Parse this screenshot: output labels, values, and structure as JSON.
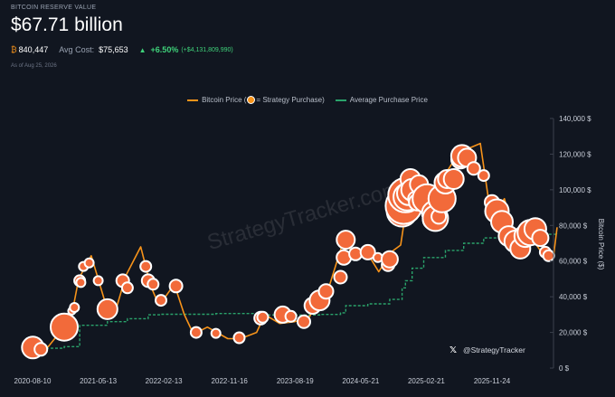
{
  "header": {
    "label": "BITCOIN RESERVE VALUE",
    "value": "$67.71 billion",
    "btc_symbol": "₿",
    "btc_amount": "840,447",
    "avg_cost_label": "Avg Cost:",
    "avg_cost_value": "$75,653",
    "change_pct": "+6.50%",
    "change_abs": "(+$4,131,809,990)",
    "as_of": "As of Aug 25, 2026"
  },
  "legend": {
    "price_a": "Bitcoin Price (",
    "price_b": " = Strategy Purchase)",
    "avg": "Average Purchase Price"
  },
  "watermark": "StrategyTracker.com",
  "handle": "@StrategyTracker",
  "colors": {
    "price": "#f7931a",
    "avg": "#2aa36b",
    "bubble": "#f26a3a",
    "background": "#111620"
  },
  "chart_data": {
    "type": "line",
    "x_ticks": [
      "2020-08-10",
      "2021-05-13",
      "2022-02-13",
      "2022-11-16",
      "2023-08-19",
      "2024-05-21",
      "2025-02-21",
      "2025-11-24"
    ],
    "y_ticks": [
      "0 $",
      "20,000 $",
      "40,000 $",
      "60,000 $",
      "80,000 $",
      "100,000 $",
      "120,000 $",
      "140,000 $"
    ],
    "ylabel": "Bitcoin Price ($)",
    "ylim": [
      0,
      140000
    ],
    "y_axis_position": "right",
    "grid": false,
    "series": [
      {
        "name": "Bitcoin Price",
        "values_x": [
          "2020-08-10",
          "2020-10-15",
          "2020-12-20",
          "2021-01-25",
          "2021-02-20",
          "2021-04-14",
          "2021-06-22",
          "2021-07-20",
          "2021-09-07",
          "2021-11-08",
          "2021-12-20",
          "2022-01-24",
          "2022-03-29",
          "2022-05-10",
          "2022-06-18",
          "2022-08-15",
          "2022-11-09",
          "2023-01-01",
          "2023-03-10",
          "2023-04-14",
          "2023-06-15",
          "2023-08-17",
          "2023-10-20",
          "2023-12-05",
          "2024-01-10",
          "2024-03-13",
          "2024-04-20",
          "2024-06-20",
          "2024-08-05",
          "2024-09-25",
          "2024-11-05",
          "2024-12-17",
          "2025-01-20",
          "2025-03-10",
          "2025-04-08",
          "2025-05-22",
          "2025-07-14",
          "2025-08-14",
          "2025-10-06",
          "2025-11-21",
          "2026-01-15",
          "2026-03-15",
          "2026-05-15",
          "2026-07-15",
          "2026-08-10",
          "2026-08-25"
        ],
        "values": [
          11500,
          12000,
          23000,
          32000,
          50000,
          63000,
          32000,
          30000,
          52000,
          68000,
          46000,
          35000,
          47000,
          30000,
          19000,
          23000,
          16500,
          16500,
          20000,
          30000,
          25000,
          26000,
          29000,
          43000,
          46000,
          73000,
          63000,
          64000,
          54000,
          65000,
          69000,
          106000,
          108000,
          80000,
          77000,
          111000,
          122000,
          123000,
          126000,
          84000,
          95000,
          68000,
          72000,
          60000,
          63000,
          79000
        ]
      },
      {
        "name": "Average Purchase Price",
        "values_x": [
          "2020-08-10",
          "2020-12-21",
          "2021-02-24",
          "2021-06-21",
          "2021-09-13",
          "2021-12-09",
          "2022-02-01",
          "2022-09-20",
          "2023-04-05",
          "2023-11-30",
          "2024-02-26",
          "2024-03-19",
          "2024-06-20",
          "2024-09-20",
          "2024-11-11",
          "2024-11-25",
          "2024-12-23",
          "2025-02-10",
          "2025-05-12",
          "2025-07-28",
          "2025-10-20",
          "2026-01-15",
          "2026-05-15",
          "2026-08-25"
        ],
        "values": [
          11100,
          12000,
          24000,
          26000,
          27700,
          29900,
          30200,
          30600,
          29800,
          30100,
          31000,
          35000,
          36000,
          38500,
          45000,
          49000,
          56000,
          62000,
          66000,
          70000,
          73000,
          74000,
          75000,
          75653
        ]
      }
    ],
    "purchases": [
      {
        "date": "2020-08-11",
        "price": 11500,
        "size": 12
      },
      {
        "date": "2020-09-14",
        "price": 10500,
        "size": 7
      },
      {
        "date": "2020-12-04",
        "price": 19000,
        "size": 6
      },
      {
        "date": "2020-12-21",
        "price": 23000,
        "size": 15
      },
      {
        "date": "2021-01-22",
        "price": 32000,
        "size": 4
      },
      {
        "date": "2021-02-02",
        "price": 34000,
        "size": 5
      },
      {
        "date": "2021-02-24",
        "price": 49000,
        "size": 6
      },
      {
        "date": "2021-03-01",
        "price": 48000,
        "size": 5
      },
      {
        "date": "2021-03-12",
        "price": 57000,
        "size": 5
      },
      {
        "date": "2021-04-05",
        "price": 59000,
        "size": 5
      },
      {
        "date": "2021-05-13",
        "price": 49000,
        "size": 5
      },
      {
        "date": "2021-06-21",
        "price": 33000,
        "size": 11
      },
      {
        "date": "2021-08-24",
        "price": 49000,
        "size": 7
      },
      {
        "date": "2021-09-13",
        "price": 45000,
        "size": 6
      },
      {
        "date": "2021-11-29",
        "price": 57000,
        "size": 6
      },
      {
        "date": "2021-12-09",
        "price": 49000,
        "size": 7
      },
      {
        "date": "2021-12-30",
        "price": 47000,
        "size": 6
      },
      {
        "date": "2022-02-01",
        "price": 38000,
        "size": 6
      },
      {
        "date": "2022-04-05",
        "price": 46000,
        "size": 7
      },
      {
        "date": "2022-06-29",
        "price": 20000,
        "size": 6
      },
      {
        "date": "2022-09-20",
        "price": 19500,
        "size": 5
      },
      {
        "date": "2022-12-27",
        "price": 17000,
        "size": 6
      },
      {
        "date": "2023-03-27",
        "price": 28000,
        "size": 7
      },
      {
        "date": "2023-04-05",
        "price": 28500,
        "size": 6
      },
      {
        "date": "2023-06-28",
        "price": 30000,
        "size": 9
      },
      {
        "date": "2023-08-01",
        "price": 29000,
        "size": 6
      },
      {
        "date": "2023-09-25",
        "price": 26000,
        "size": 7
      },
      {
        "date": "2023-11-01",
        "price": 35000,
        "size": 9
      },
      {
        "date": "2023-11-30",
        "price": 38000,
        "size": 11
      },
      {
        "date": "2023-12-27",
        "price": 43000,
        "size": 8
      },
      {
        "date": "2024-02-26",
        "price": 51000,
        "size": 7
      },
      {
        "date": "2024-03-11",
        "price": 62000,
        "size": 8
      },
      {
        "date": "2024-03-19",
        "price": 72000,
        "size": 10
      },
      {
        "date": "2024-04-29",
        "price": 64000,
        "size": 7
      },
      {
        "date": "2024-06-20",
        "price": 65000,
        "size": 8
      },
      {
        "date": "2024-08-01",
        "price": 62000,
        "size": 5
      },
      {
        "date": "2024-09-13",
        "price": 58000,
        "size": 7
      },
      {
        "date": "2024-09-20",
        "price": 61000,
        "size": 9
      },
      {
        "date": "2024-11-11",
        "price": 88000,
        "size": 17
      },
      {
        "date": "2024-11-18",
        "price": 91000,
        "size": 20
      },
      {
        "date": "2024-11-25",
        "price": 97000,
        "size": 19
      },
      {
        "date": "2024-12-02",
        "price": 96000,
        "size": 15
      },
      {
        "date": "2024-12-09",
        "price": 98000,
        "size": 13
      },
      {
        "date": "2024-12-16",
        "price": 106000,
        "size": 11
      },
      {
        "date": "2024-12-23",
        "price": 100000,
        "size": 12
      },
      {
        "date": "2025-01-06",
        "price": 95000,
        "size": 8
      },
      {
        "date": "2025-01-13",
        "price": 93000,
        "size": 9
      },
      {
        "date": "2025-01-21",
        "price": 103000,
        "size": 10
      },
      {
        "date": "2025-02-10",
        "price": 97000,
        "size": 8
      },
      {
        "date": "2025-02-24",
        "price": 95000,
        "size": 16
      },
      {
        "date": "2025-03-17",
        "price": 83000,
        "size": 10
      },
      {
        "date": "2025-03-24",
        "price": 87000,
        "size": 13
      },
      {
        "date": "2025-03-31",
        "price": 84000,
        "size": 14
      },
      {
        "date": "2025-04-14",
        "price": 85000,
        "size": 8
      },
      {
        "date": "2025-04-21",
        "price": 92000,
        "size": 9
      },
      {
        "date": "2025-04-28",
        "price": 95000,
        "size": 15
      },
      {
        "date": "2025-05-12",
        "price": 104000,
        "size": 12
      },
      {
        "date": "2025-05-19",
        "price": 106000,
        "size": 10
      },
      {
        "date": "2025-06-16",
        "price": 106000,
        "size": 11
      },
      {
        "date": "2025-07-14",
        "price": 117000,
        "size": 10
      },
      {
        "date": "2025-07-21",
        "price": 119000,
        "size": 12
      },
      {
        "date": "2025-08-11",
        "price": 118000,
        "size": 10
      },
      {
        "date": "2025-09-08",
        "price": 112000,
        "size": 7
      },
      {
        "date": "2025-10-20",
        "price": 108000,
        "size": 6
      },
      {
        "date": "2025-11-24",
        "price": 93000,
        "size": 8
      },
      {
        "date": "2025-12-15",
        "price": 88000,
        "size": 13
      },
      {
        "date": "2026-01-05",
        "price": 82000,
        "size": 12
      },
      {
        "date": "2026-02-02",
        "price": 74000,
        "size": 11
      },
      {
        "date": "2026-03-02",
        "price": 71000,
        "size": 12
      },
      {
        "date": "2026-03-23",
        "price": 67000,
        "size": 11
      },
      {
        "date": "2026-04-13",
        "price": 74000,
        "size": 12
      },
      {
        "date": "2026-05-04",
        "price": 76000,
        "size": 14
      },
      {
        "date": "2026-05-25",
        "price": 78000,
        "size": 12
      },
      {
        "date": "2026-06-15",
        "price": 73000,
        "size": 9
      },
      {
        "date": "2026-07-06",
        "price": 65000,
        "size": 6
      },
      {
        "date": "2026-07-20",
        "price": 63000,
        "size": 6
      }
    ]
  }
}
